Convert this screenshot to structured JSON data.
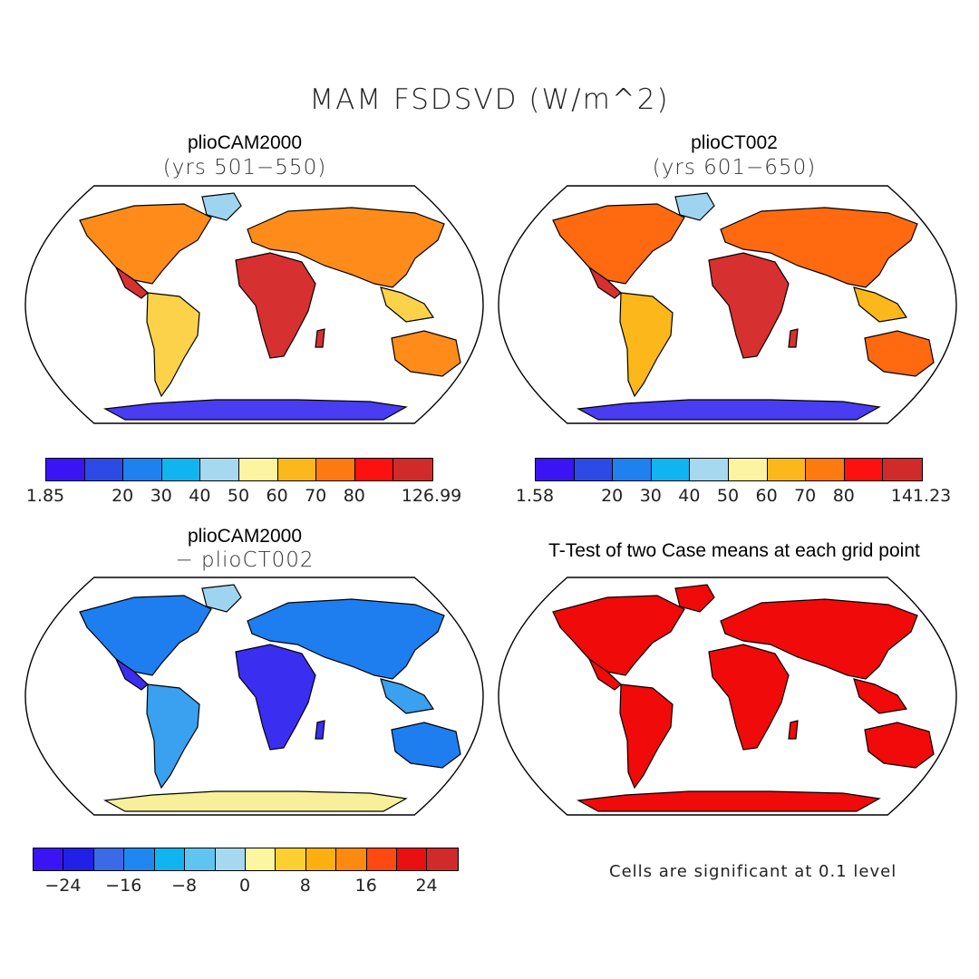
{
  "title": "MAM FSDSVD (W/m^2)",
  "panels": [
    {
      "title": "plioCAM2000",
      "subtitle": "(yrs 501−550)",
      "colors": {
        "ocean": "#ffffff",
        "land_warm": "#d73030",
        "land_mid": "#ff8c1a",
        "land_cool": "#fcd24a",
        "polar": "#4a3cf0",
        "high_lat": "#9fd4f0"
      }
    },
    {
      "title": "plioCT002",
      "subtitle": "(yrs 601−650)",
      "colors": {
        "ocean": "#ffffff",
        "land_warm": "#d73030",
        "land_mid": "#ff6a10",
        "land_cool": "#fcb81a",
        "polar": "#4a3cf0",
        "high_lat": "#9fd4f0"
      }
    },
    {
      "title": "plioCAM2000",
      "subtitle": "− plioCT002",
      "colors": {
        "ocean": "#ffffff",
        "land_warm": "#3a2ef0",
        "land_mid": "#1e7ef0",
        "land_cool": "#3aa0f0",
        "polar": "#f7ef9a",
        "high_lat": "#9fd4f0"
      }
    },
    {
      "title": "T-Test of two Case means at each grid point",
      "subtitle": "",
      "colors": {
        "ocean": "#ffffff",
        "land_warm": "#f00a0a",
        "land_mid": "#f00a0a",
        "land_cool": "#f00a0a",
        "polar": "#f00a0a",
        "high_lat": "#f00a0a"
      }
    }
  ],
  "colorbars": [
    {
      "colors": [
        "#3a14f5",
        "#2d4ae6",
        "#1f80f0",
        "#10b4f0",
        "#a6d8f0",
        "#fcf4a0",
        "#fcb81a",
        "#fd7a10",
        "#fd1010",
        "#d12a2a"
      ],
      "labels": [
        {
          "text": "1.85",
          "pos": 0
        },
        {
          "text": "20",
          "pos": 2
        },
        {
          "text": "30",
          "pos": 3
        },
        {
          "text": "40",
          "pos": 4
        },
        {
          "text": "50",
          "pos": 5
        },
        {
          "text": "60",
          "pos": 6
        },
        {
          "text": "70",
          "pos": 7
        },
        {
          "text": "80",
          "pos": 8
        },
        {
          "text": "126.99",
          "pos": 10
        }
      ]
    },
    {
      "colors": [
        "#3a14f5",
        "#2d4ae6",
        "#1f80f0",
        "#10b4f0",
        "#a6d8f0",
        "#fcf4a0",
        "#fcb81a",
        "#fd7a10",
        "#fd1010",
        "#d12a2a"
      ],
      "labels": [
        {
          "text": "1.58",
          "pos": 0
        },
        {
          "text": "20",
          "pos": 2
        },
        {
          "text": "30",
          "pos": 3
        },
        {
          "text": "40",
          "pos": 4
        },
        {
          "text": "50",
          "pos": 5
        },
        {
          "text": "60",
          "pos": 6
        },
        {
          "text": "70",
          "pos": 7
        },
        {
          "text": "80",
          "pos": 8
        },
        {
          "text": "141.23",
          "pos": 10
        }
      ]
    },
    {
      "colors": [
        "#3a14f5",
        "#2020e6",
        "#3a6ae6",
        "#1e88f0",
        "#10b4f0",
        "#60c4f0",
        "#a6d8f0",
        "#fcf6a0",
        "#fcd030",
        "#fcb010",
        "#fd8a10",
        "#fd4a10",
        "#e81010",
        "#d12a2a"
      ],
      "labels": [
        {
          "text": "−24",
          "pos": 1
        },
        {
          "text": "−16",
          "pos": 3
        },
        {
          "text": "−8",
          "pos": 5
        },
        {
          "text": "0",
          "pos": 7
        },
        {
          "text": "8",
          "pos": 9
        },
        {
          "text": "16",
          "pos": 11
        },
        {
          "text": "24",
          "pos": 13
        }
      ]
    }
  ],
  "note": "Cells are significant at 0.1 level"
}
